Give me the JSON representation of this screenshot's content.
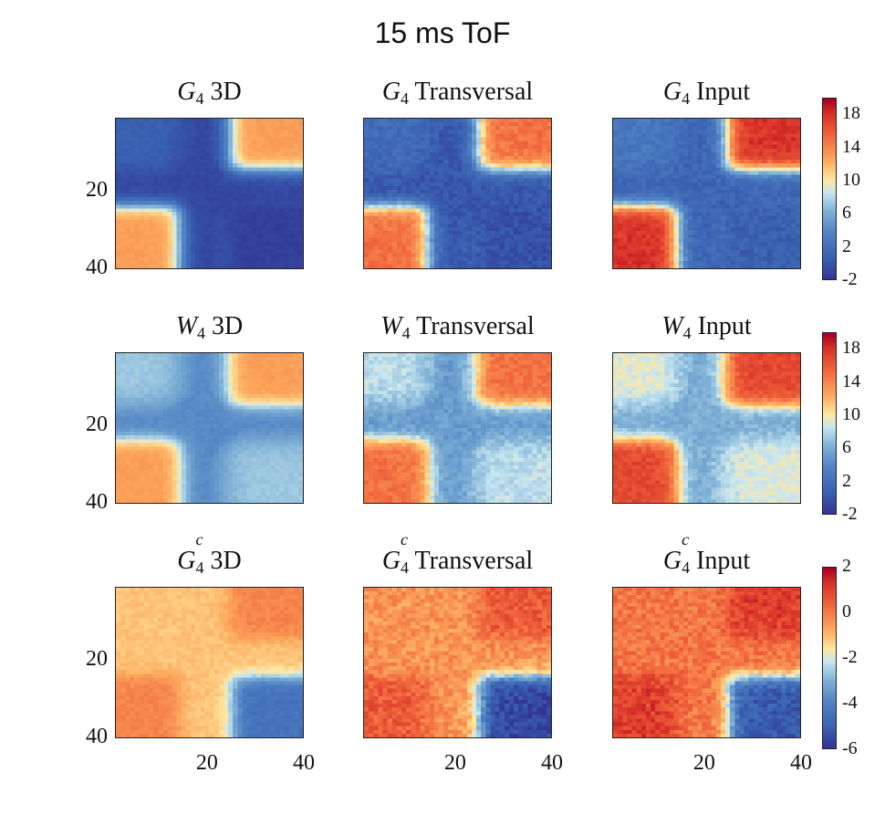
{
  "figure_title": "15 ms ToF",
  "chart_data": {
    "type": "heatmap",
    "title": "15 ms ToF",
    "grid": false,
    "x_ticks": [
      20,
      40
    ],
    "y_ticks": [
      20,
      40
    ],
    "axis_range": [
      1,
      40
    ],
    "rows": [
      {
        "colorbar": {
          "range": [
            -2,
            20
          ],
          "ticks": [
            18,
            14,
            10,
            6,
            2,
            -2
          ]
        },
        "panels": [
          {
            "symbol": "G",
            "sub": "4",
            "sup": "",
            "label": "3D",
            "peak": 13,
            "valley": -1
          },
          {
            "symbol": "G",
            "sub": "4",
            "sup": "",
            "label": "Transversal",
            "peak": 15,
            "valley": 0
          },
          {
            "symbol": "G",
            "sub": "4",
            "sup": "",
            "label": "Input",
            "peak": 18,
            "valley": 1
          }
        ]
      },
      {
        "colorbar": {
          "range": [
            -2,
            20
          ],
          "ticks": [
            18,
            14,
            10,
            6,
            2,
            -2
          ]
        },
        "panels": [
          {
            "symbol": "W",
            "sub": "4",
            "sup": "",
            "label": "3D",
            "peak": 13,
            "valley": 4
          },
          {
            "symbol": "W",
            "sub": "4",
            "sup": "",
            "label": "Transversal",
            "peak": 15,
            "valley": 5
          },
          {
            "symbol": "W",
            "sub": "4",
            "sup": "",
            "label": "Input",
            "peak": 17,
            "valley": 6
          }
        ]
      },
      {
        "colorbar": {
          "range": [
            -6,
            2
          ],
          "ticks": [
            2,
            0,
            -2,
            -4,
            -6
          ]
        },
        "panels": [
          {
            "symbol": "G",
            "sub": "4",
            "sup": "c",
            "label": "3D",
            "peak": 0.3,
            "valley": -4.5
          },
          {
            "symbol": "G",
            "sub": "4",
            "sup": "c",
            "label": "Transversal",
            "peak": 1,
            "valley": -5.6
          },
          {
            "symbol": "G",
            "sub": "4",
            "sup": "c",
            "label": "Input",
            "peak": 1.5,
            "valley": -5.2
          }
        ]
      }
    ]
  }
}
